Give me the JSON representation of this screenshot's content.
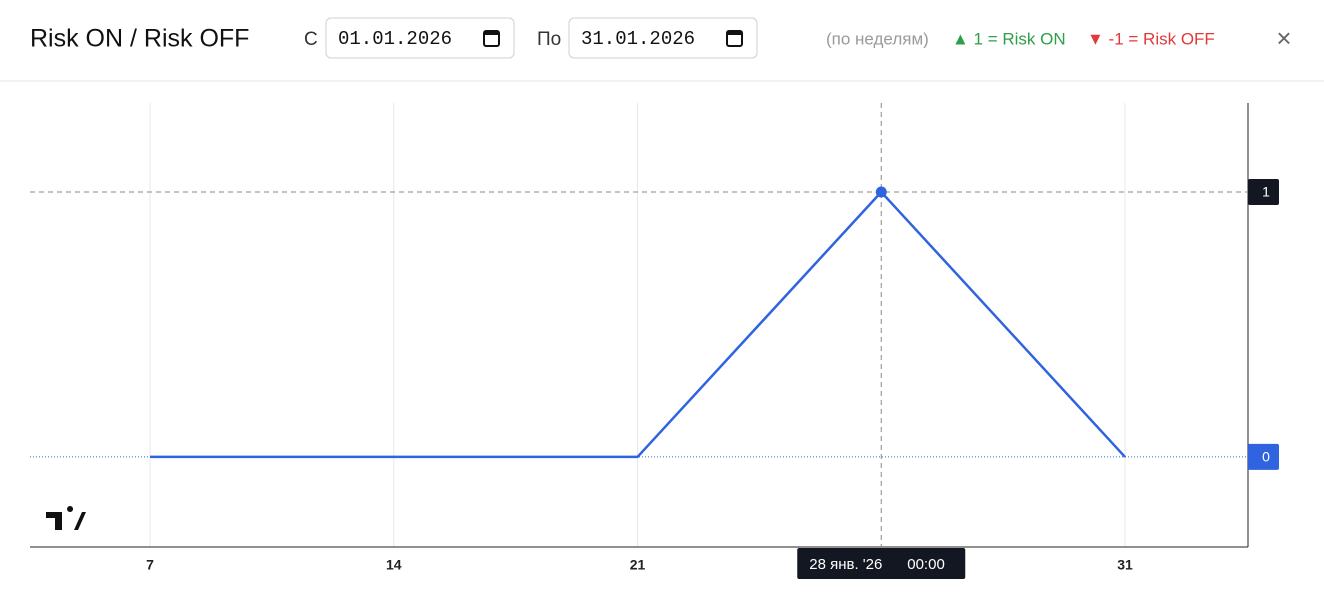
{
  "header": {
    "title": "Risk ON / Risk OFF",
    "from_label": "С",
    "from_date": "01.01.2026",
    "to_label": "По",
    "to_date": "31.01.2026",
    "period_note": "(по неделям)",
    "legend_on": "▲ 1 = Risk ON",
    "legend_off": "▼ -1 = Risk OFF",
    "close": "×"
  },
  "chart_data": {
    "type": "line",
    "categories": [
      "7",
      "14",
      "21",
      null,
      "31"
    ],
    "values": [
      0,
      0,
      0,
      1,
      0
    ],
    "color": "#2f63e0",
    "ylim": [
      -0.34,
      1.336
    ],
    "yticks": [
      0,
      1
    ],
    "grid": true,
    "crosshair": {
      "index": 3,
      "date_label": "28 янв. '26",
      "time_label": "00:00"
    }
  }
}
